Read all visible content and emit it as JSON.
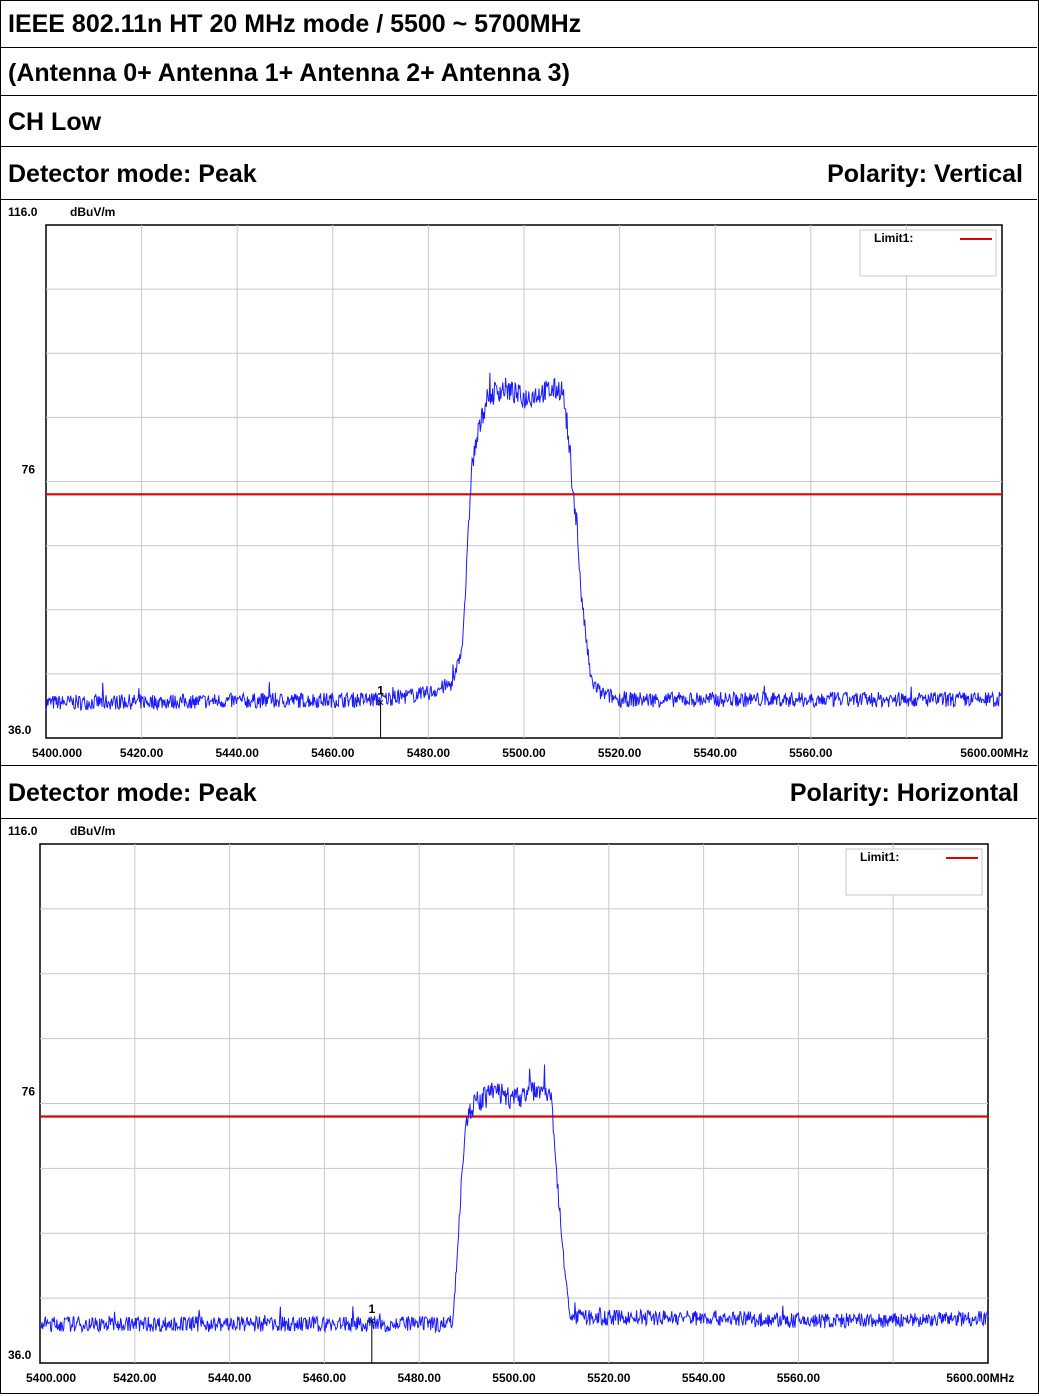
{
  "header": {
    "line1": "IEEE 802.11n HT 20 MHz mode / 5500 ~ 5700MHz",
    "line2": "(Antenna  0+  Antenna  1+  Antenna  2+  Antenna  3)",
    "channel": "CH Low"
  },
  "sections": [
    {
      "detector": "Detector mode: Peak",
      "polarity": "Polarity: Vertical"
    },
    {
      "detector": "Detector mode: Peak",
      "polarity": "Polarity: Horizontal"
    }
  ],
  "colors": {
    "trace": "#1a1aff",
    "limit": "#e00000",
    "grid": "#c8c8c8"
  },
  "chart_data": [
    {
      "type": "line",
      "ylabel": "dBuV/m",
      "xunit": "MHz",
      "ylim": [
        36.0,
        116.0
      ],
      "xlim": [
        5400,
        5600
      ],
      "y_tick_labels": [
        "116.0",
        "76",
        "36.0"
      ],
      "x_tick_labels": [
        "5400.000",
        "5420.00",
        "5440.00",
        "5460.00",
        "5480.00",
        "5500.00",
        "5520.00",
        "5540.00",
        "5560.00",
        "5600.00"
      ],
      "legend": {
        "label": "Limit1:",
        "placement": "top-right"
      },
      "limit_line": 74,
      "marker": {
        "label": "1",
        "x": 5470,
        "y": 41.5
      },
      "series": [
        {
          "x": [
            5400,
            5470,
            5480,
            5485,
            5487,
            5488,
            5489,
            5490,
            5492,
            5494,
            5496,
            5500,
            5504,
            5508,
            5509,
            5510,
            5511,
            5512,
            5514,
            5516,
            5520,
            5540,
            5560,
            5580,
            5600
          ],
          "y": [
            41.5,
            42.0,
            43.0,
            44.5,
            50.0,
            62.0,
            78.0,
            82.0,
            88.5,
            90.0,
            90.5,
            89.0,
            90.0,
            90.5,
            85.0,
            76.0,
            70.0,
            58.0,
            45.0,
            43.0,
            42.0,
            42.0,
            42.0,
            42.0,
            42.0
          ]
        }
      ]
    },
    {
      "type": "line",
      "ylabel": "dBuV/m",
      "xunit": "MHz",
      "ylim": [
        36.0,
        116.0
      ],
      "xlim": [
        5400,
        5600
      ],
      "y_tick_labels": [
        "116.0",
        "76",
        "36.0"
      ],
      "x_tick_labels": [
        "5400.000",
        "5420.00",
        "5440.00",
        "5460.00",
        "5480.00",
        "5500.00",
        "5520.00",
        "5540.00",
        "5560.00",
        "5600.00"
      ],
      "legend": {
        "label": "Limit1:",
        "placement": "top-right"
      },
      "limit_line": 74,
      "marker": {
        "label": "1",
        "x": 5470,
        "y": 42.5
      },
      "series": [
        {
          "x": [
            5400,
            5470,
            5485,
            5487,
            5488,
            5489,
            5490,
            5492,
            5496,
            5500,
            5505,
            5507,
            5508,
            5509,
            5510,
            5511,
            5512,
            5520,
            5540,
            5560,
            5580,
            5600
          ],
          "y": [
            42.0,
            42.0,
            42.0,
            42.5,
            52.0,
            66.0,
            74.0,
            76.0,
            78.0,
            76.5,
            78.5,
            78.0,
            76.0,
            66.0,
            56.0,
            48.0,
            43.0,
            43.0,
            43.0,
            42.5,
            42.5,
            43.0
          ]
        }
      ]
    }
  ]
}
